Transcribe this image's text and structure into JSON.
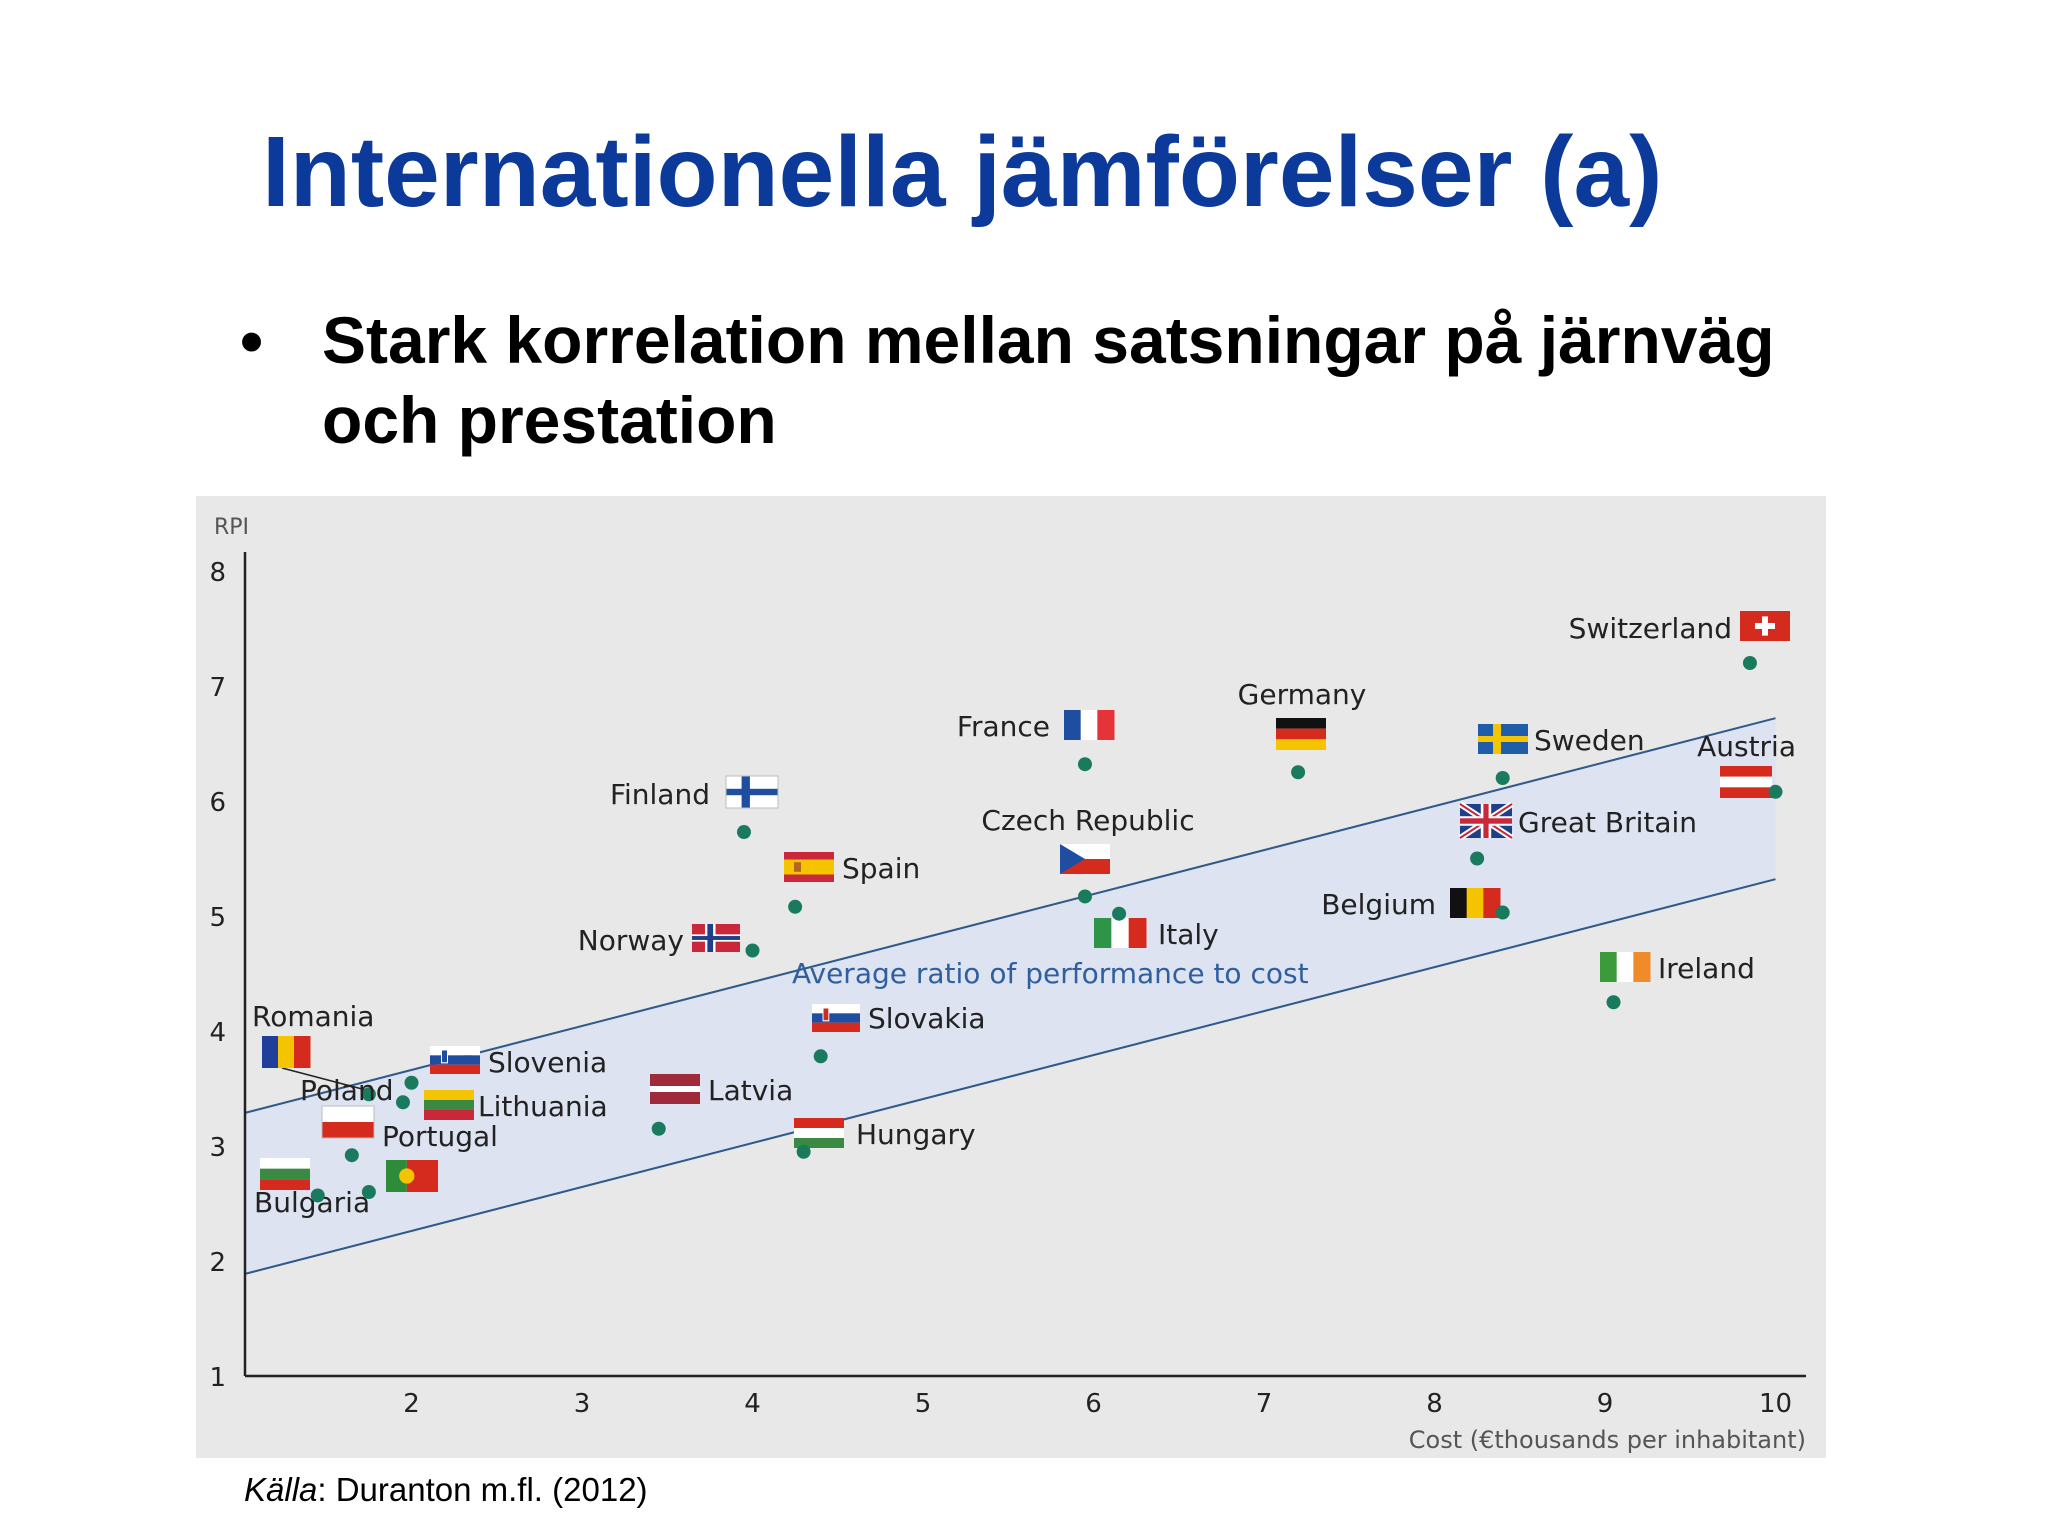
{
  "slide": {
    "title": "Internationella jämförelser (a)",
    "bullet_marker": "•",
    "bullet": "Stark korrelation mellan satsningar på järnväg och prestation",
    "source_label": "Källa",
    "source_rest": ": Duranton m.fl. (2012)"
  },
  "colors": {
    "title": "#0b3a9a",
    "point": "#1a7a5e",
    "band_fill": "#dde3f1",
    "band_line": "#2f5a8a",
    "band_label": "#2f5f9e",
    "axis": "#222222",
    "panel": "#e8e8e8"
  },
  "chart_data": {
    "type": "scatter",
    "ylabel": "RPI",
    "xlabel": "Cost (€thousands per inhabitant)",
    "xlim": [
      1.5,
      10.1
    ],
    "ylim": [
      1,
      8
    ],
    "xticks": [
      2,
      3,
      4,
      5,
      6,
      7,
      8,
      9,
      10
    ],
    "yticks": [
      1,
      2,
      3,
      4,
      5,
      6,
      7,
      8
    ],
    "grid": false,
    "band": {
      "label": "Average ratio of performance to cost",
      "upper": [
        [
          1.5,
          3.47
        ],
        [
          10.0,
          6.72
        ]
      ],
      "lower": [
        [
          1.5,
          2.07
        ],
        [
          10.0,
          5.32
        ]
      ]
    },
    "points": [
      {
        "name": "Switzerland",
        "x": 9.85,
        "y": 7.2
      },
      {
        "name": "Austria",
        "x": 10.0,
        "y": 6.08
      },
      {
        "name": "Sweden",
        "x": 8.4,
        "y": 6.2
      },
      {
        "name": "Great Britain",
        "x": 8.25,
        "y": 5.5
      },
      {
        "name": "Belgium",
        "x": 8.4,
        "y": 5.03
      },
      {
        "name": "Ireland",
        "x": 9.05,
        "y": 4.25
      },
      {
        "name": "Germany",
        "x": 7.2,
        "y": 6.25
      },
      {
        "name": "France",
        "x": 5.95,
        "y": 6.32
      },
      {
        "name": "Czech Republic",
        "x": 5.95,
        "y": 5.17
      },
      {
        "name": "Italy",
        "x": 6.15,
        "y": 5.02
      },
      {
        "name": "Finland",
        "x": 3.95,
        "y": 5.73
      },
      {
        "name": "Spain",
        "x": 4.25,
        "y": 5.08
      },
      {
        "name": "Norway",
        "x": 4.0,
        "y": 4.7
      },
      {
        "name": "Slovakia",
        "x": 4.4,
        "y": 3.78
      },
      {
        "name": "Hungary",
        "x": 4.3,
        "y": 2.95
      },
      {
        "name": "Latvia",
        "x": 3.45,
        "y": 3.15
      },
      {
        "name": "Romania",
        "x": 1.75,
        "y": 3.45
      },
      {
        "name": "Slovenia",
        "x": 2.0,
        "y": 3.55
      },
      {
        "name": "Lithuania",
        "x": 1.95,
        "y": 3.38
      },
      {
        "name": "Poland",
        "x": 1.65,
        "y": 2.92
      },
      {
        "name": "Portugal",
        "x": 1.75,
        "y": 2.6
      },
      {
        "name": "Bulgaria",
        "x": 1.45,
        "y": 2.57
      }
    ]
  }
}
